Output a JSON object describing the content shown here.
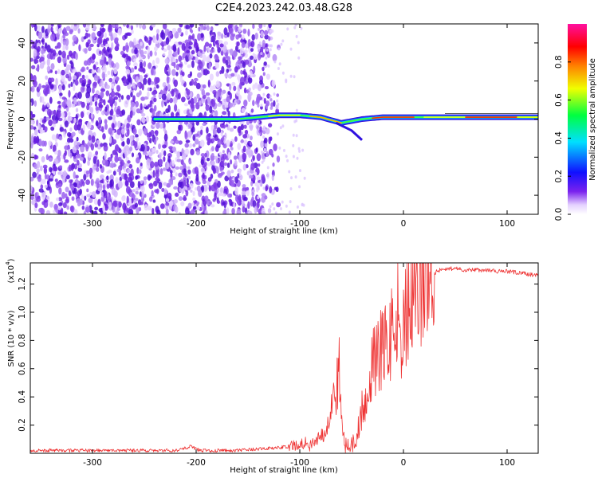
{
  "title": "C2E4.2023.242.03.48.G28",
  "chart_data": [
    {
      "type": "heatmap",
      "xlabel": "Height of straight line (km)",
      "ylabel": "Frequency (Hz)",
      "xlim": [
        -360,
        130
      ],
      "ylim": [
        -50,
        50
      ],
      "xticks": [
        -300,
        -200,
        -100,
        0,
        100
      ],
      "yticks": [
        -40,
        -20,
        0,
        20,
        40
      ],
      "colorbar": {
        "label": "Normalized spectral amplitude",
        "range": [
          0,
          1
        ],
        "ticks": [
          0.0,
          0.2,
          0.4,
          0.6,
          0.8
        ],
        "colormap": "rainbow (violet-blue-cyan-green-yellow-orange-red-magenta)"
      },
      "signal_trace": {
        "x": [
          -240,
          -220,
          -200,
          -180,
          -160,
          -140,
          -120,
          -100,
          -80,
          -60,
          -40,
          -20,
          0,
          20,
          50,
          80,
          100,
          130
        ],
        "frequency": [
          0,
          0,
          0,
          0,
          0,
          1,
          2,
          2,
          1,
          -2,
          0,
          1,
          1,
          1,
          1,
          1,
          1,
          1
        ]
      }
    },
    {
      "type": "line",
      "xlabel": "Height of straight line (km)",
      "ylabel": "SNR (10 * v/v)",
      "yscale_label": "(x10",
      "yscale_exp": "4",
      "xlim": [
        -360,
        130
      ],
      "ylim": [
        0,
        1.35
      ],
      "xticks": [
        -300,
        -200,
        -100,
        0,
        100
      ],
      "yticks": [
        0.2,
        0.4,
        0.6,
        0.8,
        1.0,
        1.2
      ],
      "color": "#ee3333",
      "series": [
        {
          "x": [
            -360,
            -340,
            -320,
            -300,
            -280,
            -260,
            -240,
            -220,
            -205,
            -200,
            -195,
            -180,
            -160,
            -140,
            -120,
            -110,
            -100,
            -95,
            -90,
            -85,
            -80,
            -75,
            -72,
            -70,
            -65,
            -62,
            -60,
            -58,
            -55,
            -50,
            -45,
            -40,
            -35,
            -30,
            -25,
            -20,
            -15,
            -10,
            -5,
            -2,
            0,
            2,
            5,
            10,
            15,
            20,
            25,
            30,
            35,
            40,
            50,
            60,
            70,
            80,
            90,
            100,
            110,
            120,
            130
          ],
          "values": [
            0.02,
            0.02,
            0.02,
            0.02,
            0.02,
            0.02,
            0.02,
            0.02,
            0.05,
            0.03,
            0.02,
            0.02,
            0.02,
            0.03,
            0.04,
            0.05,
            0.06,
            0.08,
            0.05,
            0.1,
            0.12,
            0.15,
            0.25,
            0.3,
            0.45,
            0.6,
            0.3,
            0.1,
            0.05,
            0.05,
            0.1,
            0.3,
            0.5,
            0.6,
            0.7,
            0.75,
            0.8,
            0.85,
            1.0,
            0.5,
            0.9,
            0.95,
            1.0,
            1.05,
            1.15,
            1.2,
            1.25,
            1.28,
            1.3,
            1.31,
            1.31,
            1.3,
            1.3,
            1.3,
            1.29,
            1.29,
            1.28,
            1.27,
            1.26
          ]
        }
      ]
    }
  ]
}
